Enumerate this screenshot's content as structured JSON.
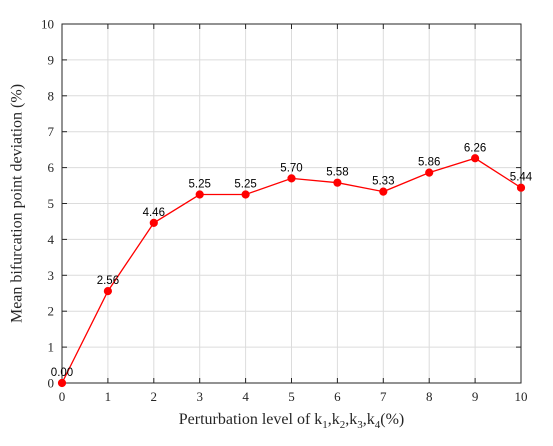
{
  "chart_data": {
    "type": "line",
    "x": [
      0,
      1,
      2,
      3,
      4,
      5,
      6,
      7,
      8,
      9,
      10
    ],
    "series": [
      {
        "values": [
          0.0,
          2.56,
          4.46,
          5.25,
          5.25,
          5.7,
          5.58,
          5.33,
          5.86,
          6.26,
          5.44
        ],
        "labels": [
          "0.00",
          "2.56",
          "4.46",
          "5.25",
          "5.25",
          "5.70",
          "5.58",
          "5.33",
          "5.86",
          "6.26",
          "5.44"
        ],
        "color": "#ff0000"
      }
    ],
    "xlim": [
      0,
      10
    ],
    "ylim": [
      0,
      10
    ],
    "xticks": [
      "0",
      "1",
      "2",
      "3",
      "4",
      "5",
      "6",
      "7",
      "8",
      "9",
      "10"
    ],
    "yticks": [
      "0",
      "1",
      "2",
      "3",
      "4",
      "5",
      "6",
      "7",
      "8",
      "9",
      "10"
    ],
    "xlabel_parts": [
      {
        "text": "Perturbation level of k"
      },
      {
        "text": "1",
        "sub": true
      },
      {
        "text": ",k"
      },
      {
        "text": "2",
        "sub": true
      },
      {
        "text": ",k"
      },
      {
        "text": "3",
        "sub": true
      },
      {
        "text": ",k"
      },
      {
        "text": "4",
        "sub": true
      },
      {
        "text": "(%)"
      }
    ],
    "ylabel": "Mean bifurcation point deviation (%)",
    "grid": true,
    "marker": "circle"
  }
}
